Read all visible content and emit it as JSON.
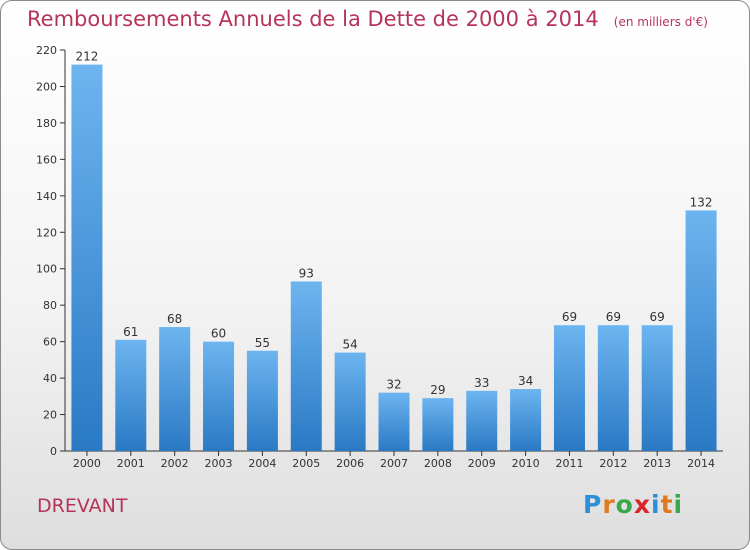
{
  "title": "Remboursements Annuels de la Dette de 2000 à 2014",
  "subtitle": "(en milliers d'€)",
  "commune": "DREVANT",
  "logo": {
    "text": "Proxiti",
    "letter_colors": [
      "#2d8fd8",
      "#e07a1f",
      "#3aa84a",
      "#d8262b",
      "#2d8fd8",
      "#e07a1f",
      "#3aa84a"
    ]
  },
  "colors": {
    "bar_light": "#6db5f0",
    "bar_dark": "#2a79c4",
    "text": "#b5345a",
    "axis": "#333333"
  },
  "chart_data": {
    "type": "bar",
    "categories": [
      "2000",
      "2001",
      "2002",
      "2003",
      "2004",
      "2005",
      "2006",
      "2007",
      "2008",
      "2009",
      "2010",
      "2011",
      "2012",
      "2013",
      "2014"
    ],
    "values": [
      212,
      61,
      68,
      60,
      55,
      93,
      54,
      32,
      29,
      33,
      34,
      69,
      69,
      69,
      132
    ],
    "data_labels": [
      "212",
      "61",
      "68",
      "60",
      "55",
      "93",
      "54",
      "32",
      "29",
      "33",
      "34",
      "69",
      "69",
      "69",
      "132"
    ],
    "ylim": [
      0,
      220
    ],
    "yticks": [
      0,
      20,
      40,
      60,
      80,
      100,
      120,
      140,
      160,
      180,
      200,
      220
    ],
    "title": "Remboursements Annuels de la Dette de 2000 à 2014",
    "xlabel": "",
    "ylabel": "",
    "grid": false,
    "legend": "none"
  }
}
